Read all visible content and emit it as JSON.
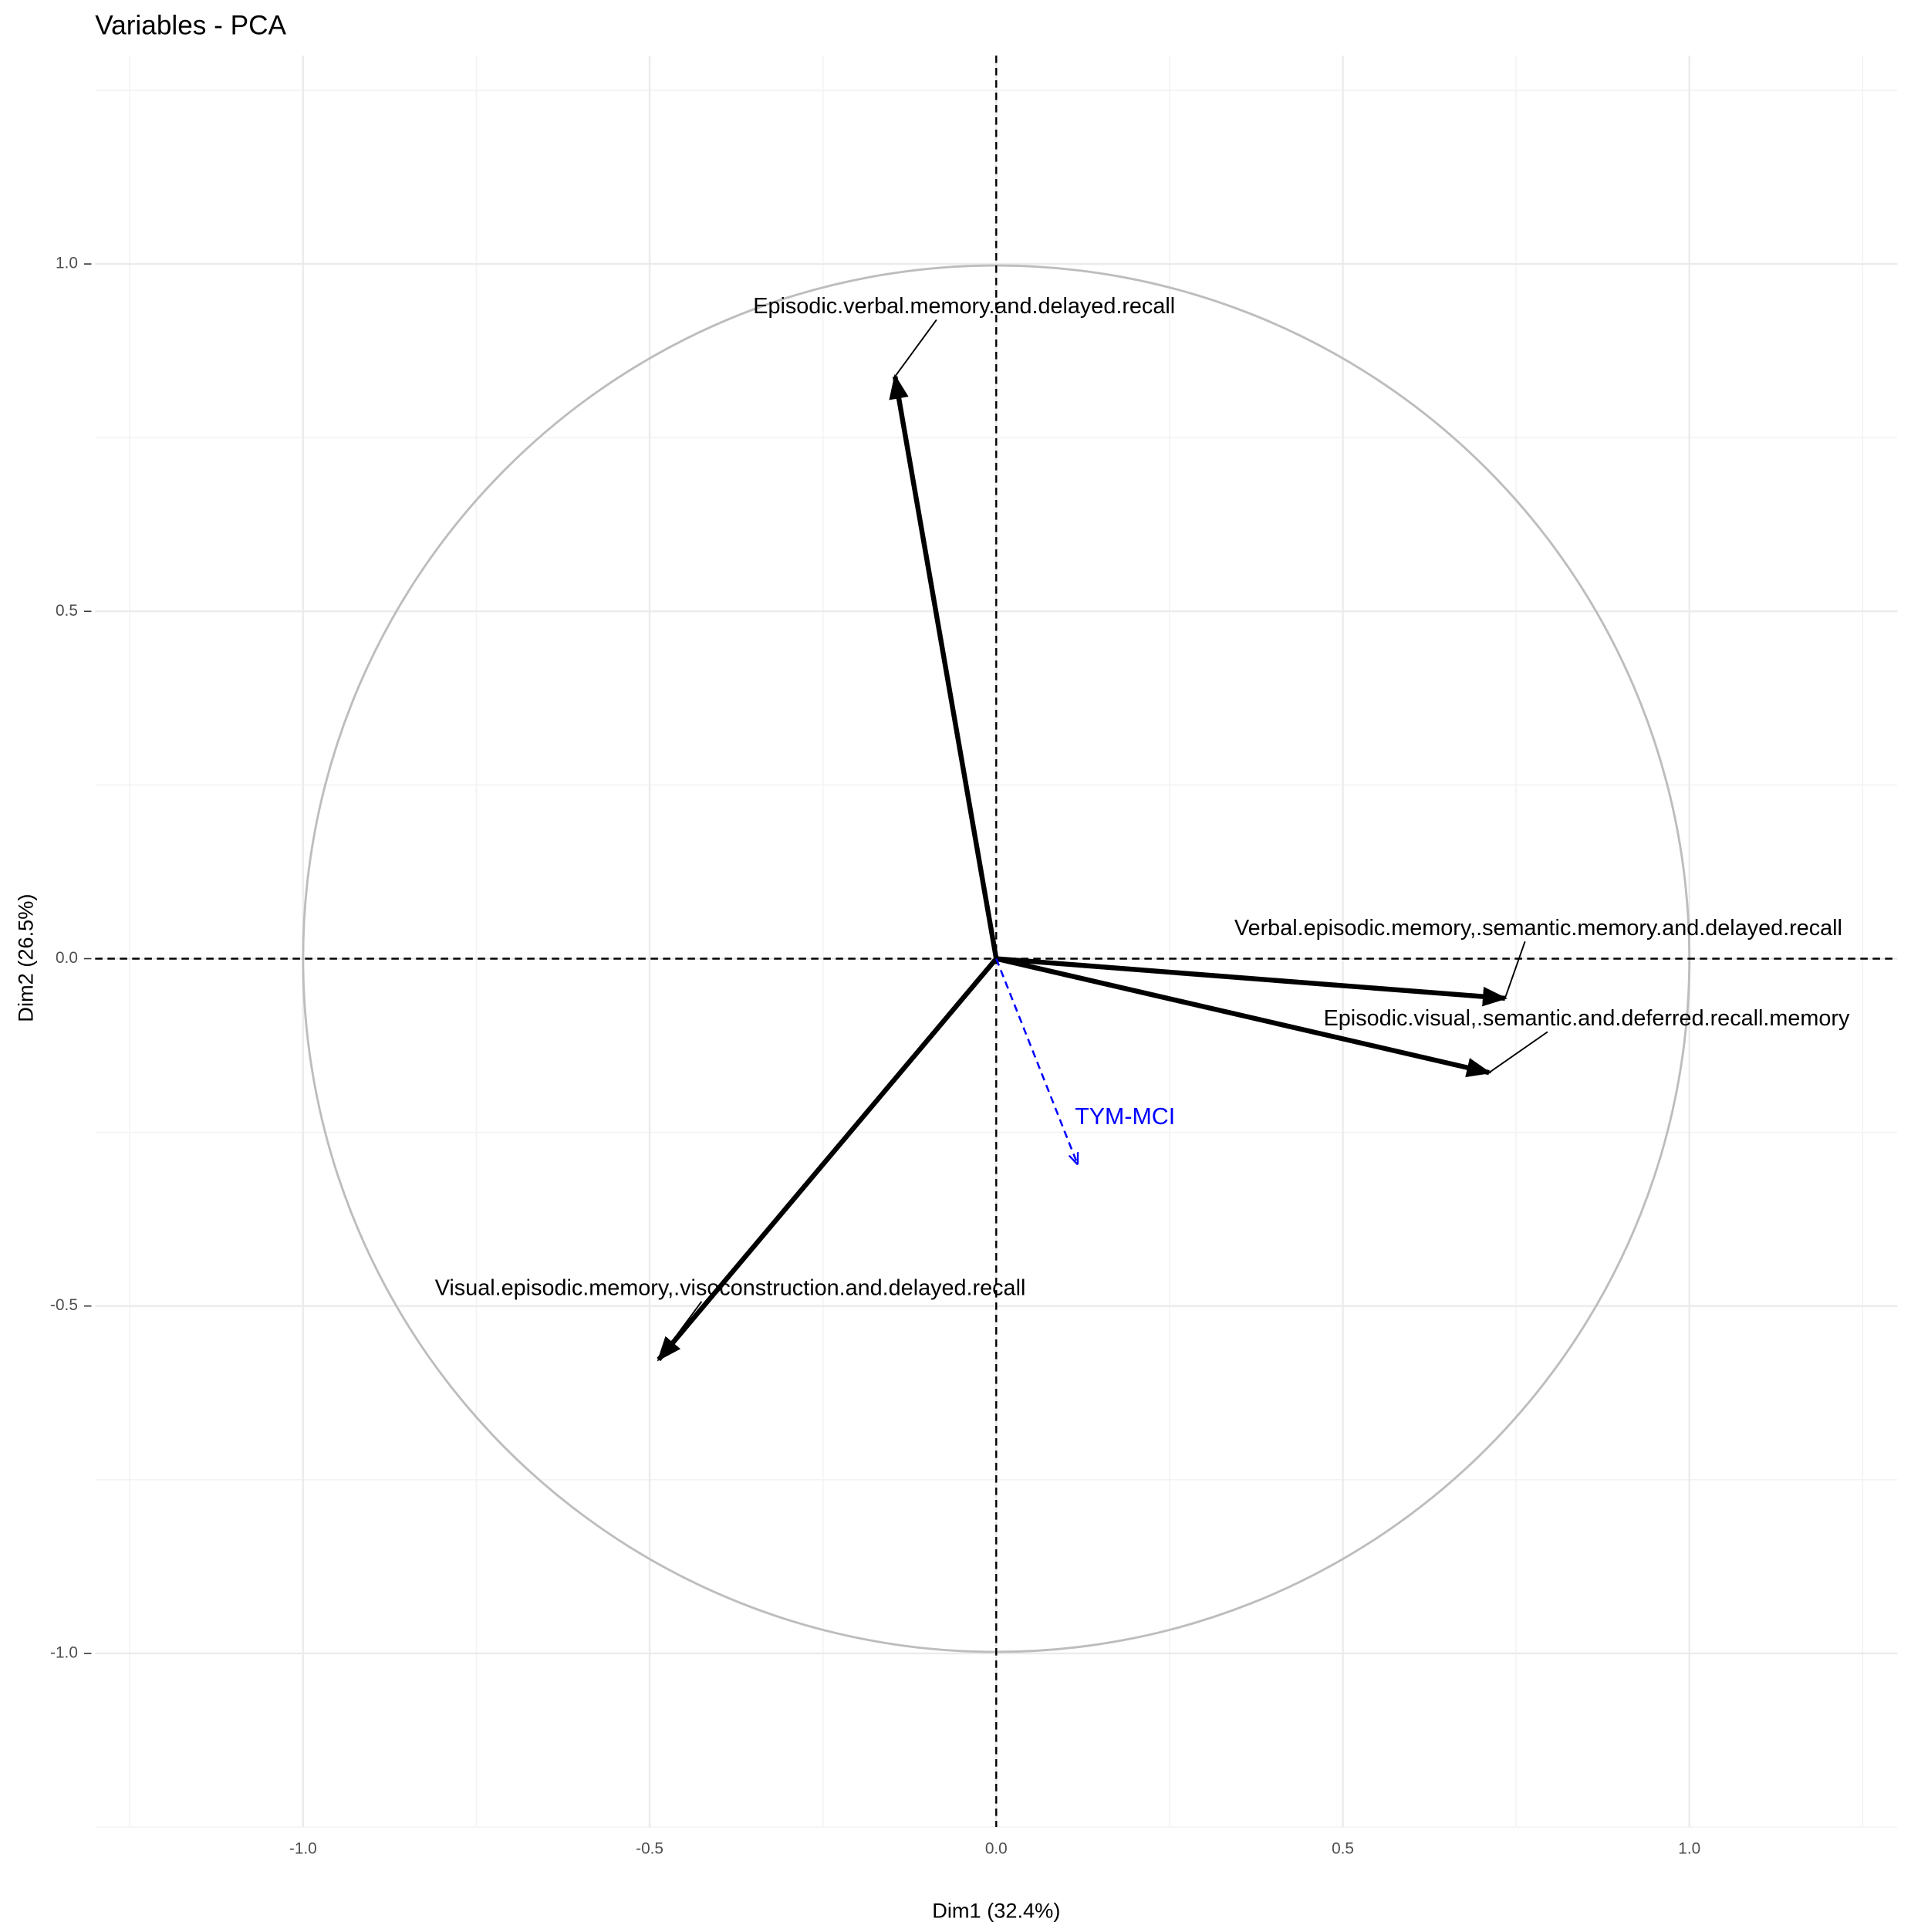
{
  "chart_data": {
    "type": "pca_variables",
    "title": "Variables - PCA",
    "x_label": "Dim1 (32.4%)",
    "y_label": "Dim2 (26.5%)",
    "xlim": [
      -1.3,
      1.3
    ],
    "ylim": [
      -1.25,
      1.3
    ],
    "xticks": [
      {
        "value": -1,
        "label": "-1.0"
      },
      {
        "value": -0.5,
        "label": "-0.5"
      },
      {
        "value": 0,
        "label": "0.0"
      },
      {
        "value": 0.5,
        "label": "0.5"
      },
      {
        "value": 1,
        "label": "1.0"
      }
    ],
    "yticks": [
      {
        "value": -1,
        "label": "-1.0"
      },
      {
        "value": -0.5,
        "label": "-0.5"
      },
      {
        "value": 0,
        "label": "0.0"
      },
      {
        "value": 0.5,
        "label": "0.5"
      },
      {
        "value": 1,
        "label": "1.0"
      }
    ],
    "grid": true,
    "minor_grid": true,
    "circle": true,
    "zero_lines": true,
    "variables": [
      {
        "label": "Episodic.verbal.memory.and.delayed.recall",
        "x": -0.146,
        "y": 0.838,
        "color": "#000000"
      },
      {
        "label": "Verbal.episodic.memory,.semantic.memory.and.delayed.recall",
        "x": 0.734,
        "y": -0.057,
        "color": "#000000"
      },
      {
        "label": "Episodic.visual,.semantic.and.deferred.recall.memory",
        "x": 0.711,
        "y": -0.164,
        "color": "#000000"
      },
      {
        "label": "Visual.episodic.memory,.visoconstruction.and.delayed.recall",
        "x": -0.487,
        "y": -0.577,
        "color": "#000000"
      }
    ],
    "supplementary": [
      {
        "label": "TYM-MCI",
        "x": 0.117,
        "y": -0.295,
        "color": "#0000ff"
      }
    ]
  }
}
